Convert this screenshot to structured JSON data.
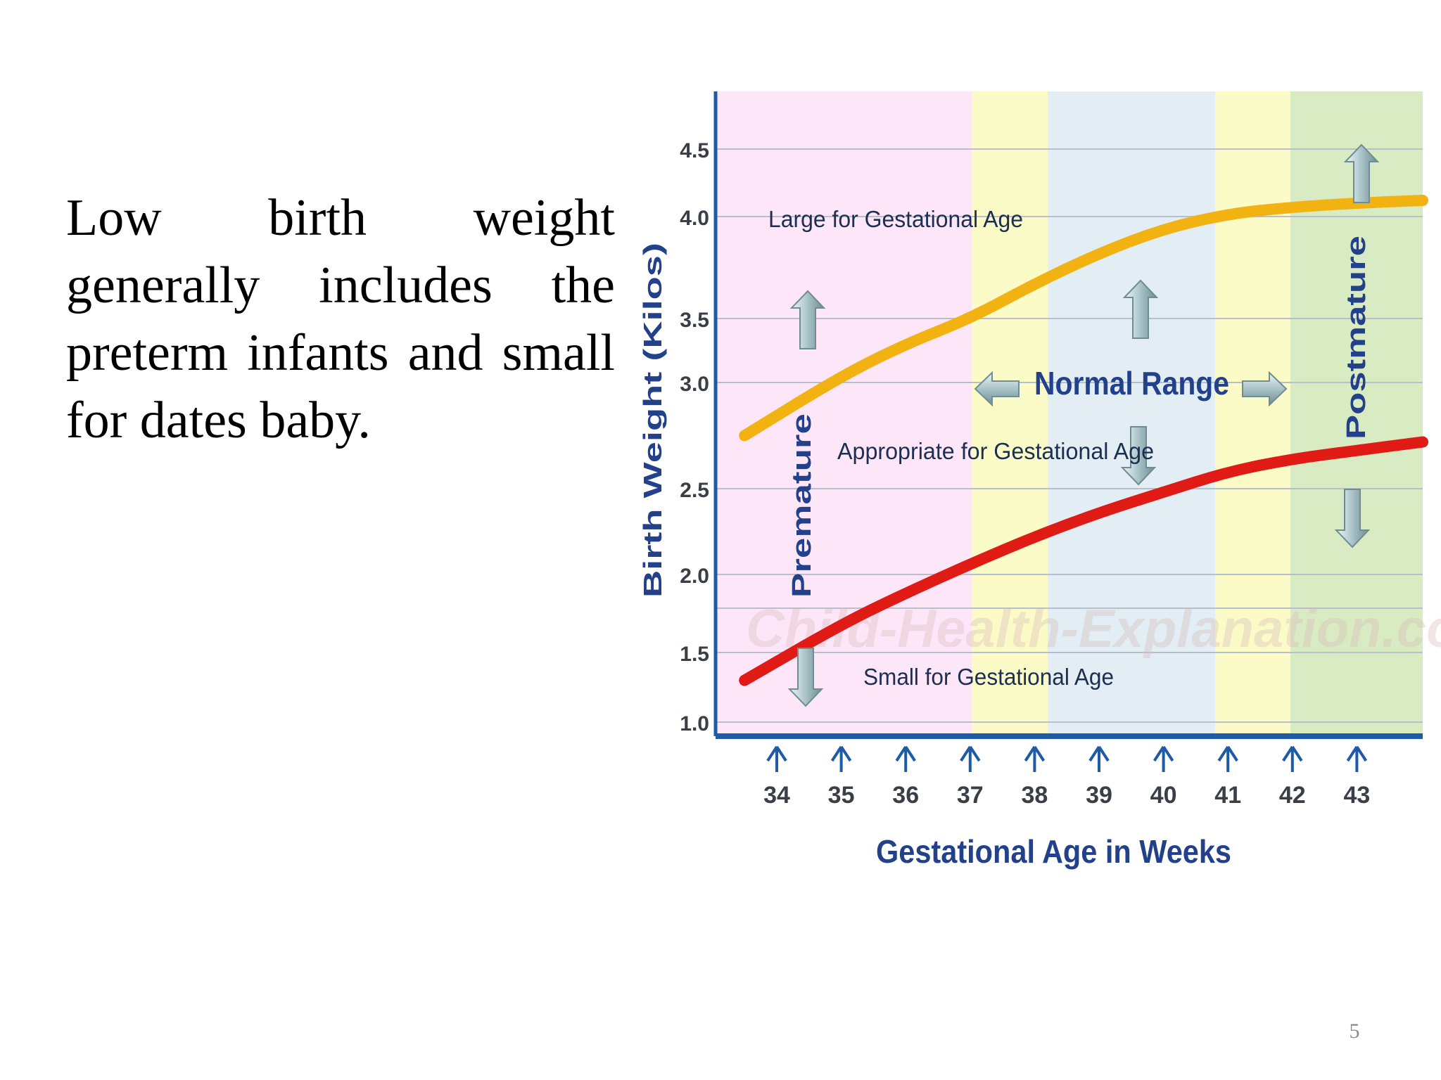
{
  "slide": {
    "body_text": "Low birth weight generally includes the preterm infants and small for dates baby.",
    "page_number": "5"
  },
  "chart_data": {
    "type": "line",
    "xlabel": "Gestational Age in Weeks",
    "ylabel": "Birth Weight (Kilos)",
    "x_ticks": [
      34,
      35,
      36,
      37,
      38,
      39,
      40,
      41,
      42,
      43
    ],
    "y_ticks": [
      "1.0",
      "1.5",
      "2.0",
      "2.5",
      "3.0",
      "3.5",
      "4.0",
      "4.5"
    ],
    "zones": [
      {
        "color": "#fde6f7",
        "label": "Premature"
      },
      {
        "color": "#fbfbc7"
      },
      {
        "color": "#e2eef4",
        "label": "Normal Range"
      },
      {
        "color": "#fbfbc7"
      },
      {
        "color": "#d9ebc2",
        "label": "Postmature"
      }
    ],
    "series": [
      {
        "color": "#f2b211",
        "x": [
          33.5,
          35,
          36,
          37,
          38,
          39,
          40,
          41,
          42,
          43,
          44.5
        ],
        "y": [
          2.75,
          3.05,
          3.3,
          3.5,
          3.67,
          3.82,
          3.94,
          4.02,
          4.07,
          4.1,
          4.12
        ]
      },
      {
        "color": "#e01a14",
        "x": [
          33.5,
          35,
          36,
          37,
          38,
          39,
          40,
          41,
          42,
          43,
          44.5
        ],
        "y": [
          1.3,
          1.68,
          1.88,
          2.06,
          2.22,
          2.36,
          2.48,
          2.58,
          2.64,
          2.68,
          2.72
        ]
      }
    ],
    "annotations": {
      "lga": "Large for Gestational Age",
      "aga": "Appropriate for Gestational Age",
      "sga": "Small for Gestational Age",
      "normal": "Normal Range",
      "premature": "Premature",
      "postmature": "Postmature"
    },
    "grid": true,
    "watermark": "Child-Health-Explanation.com"
  }
}
